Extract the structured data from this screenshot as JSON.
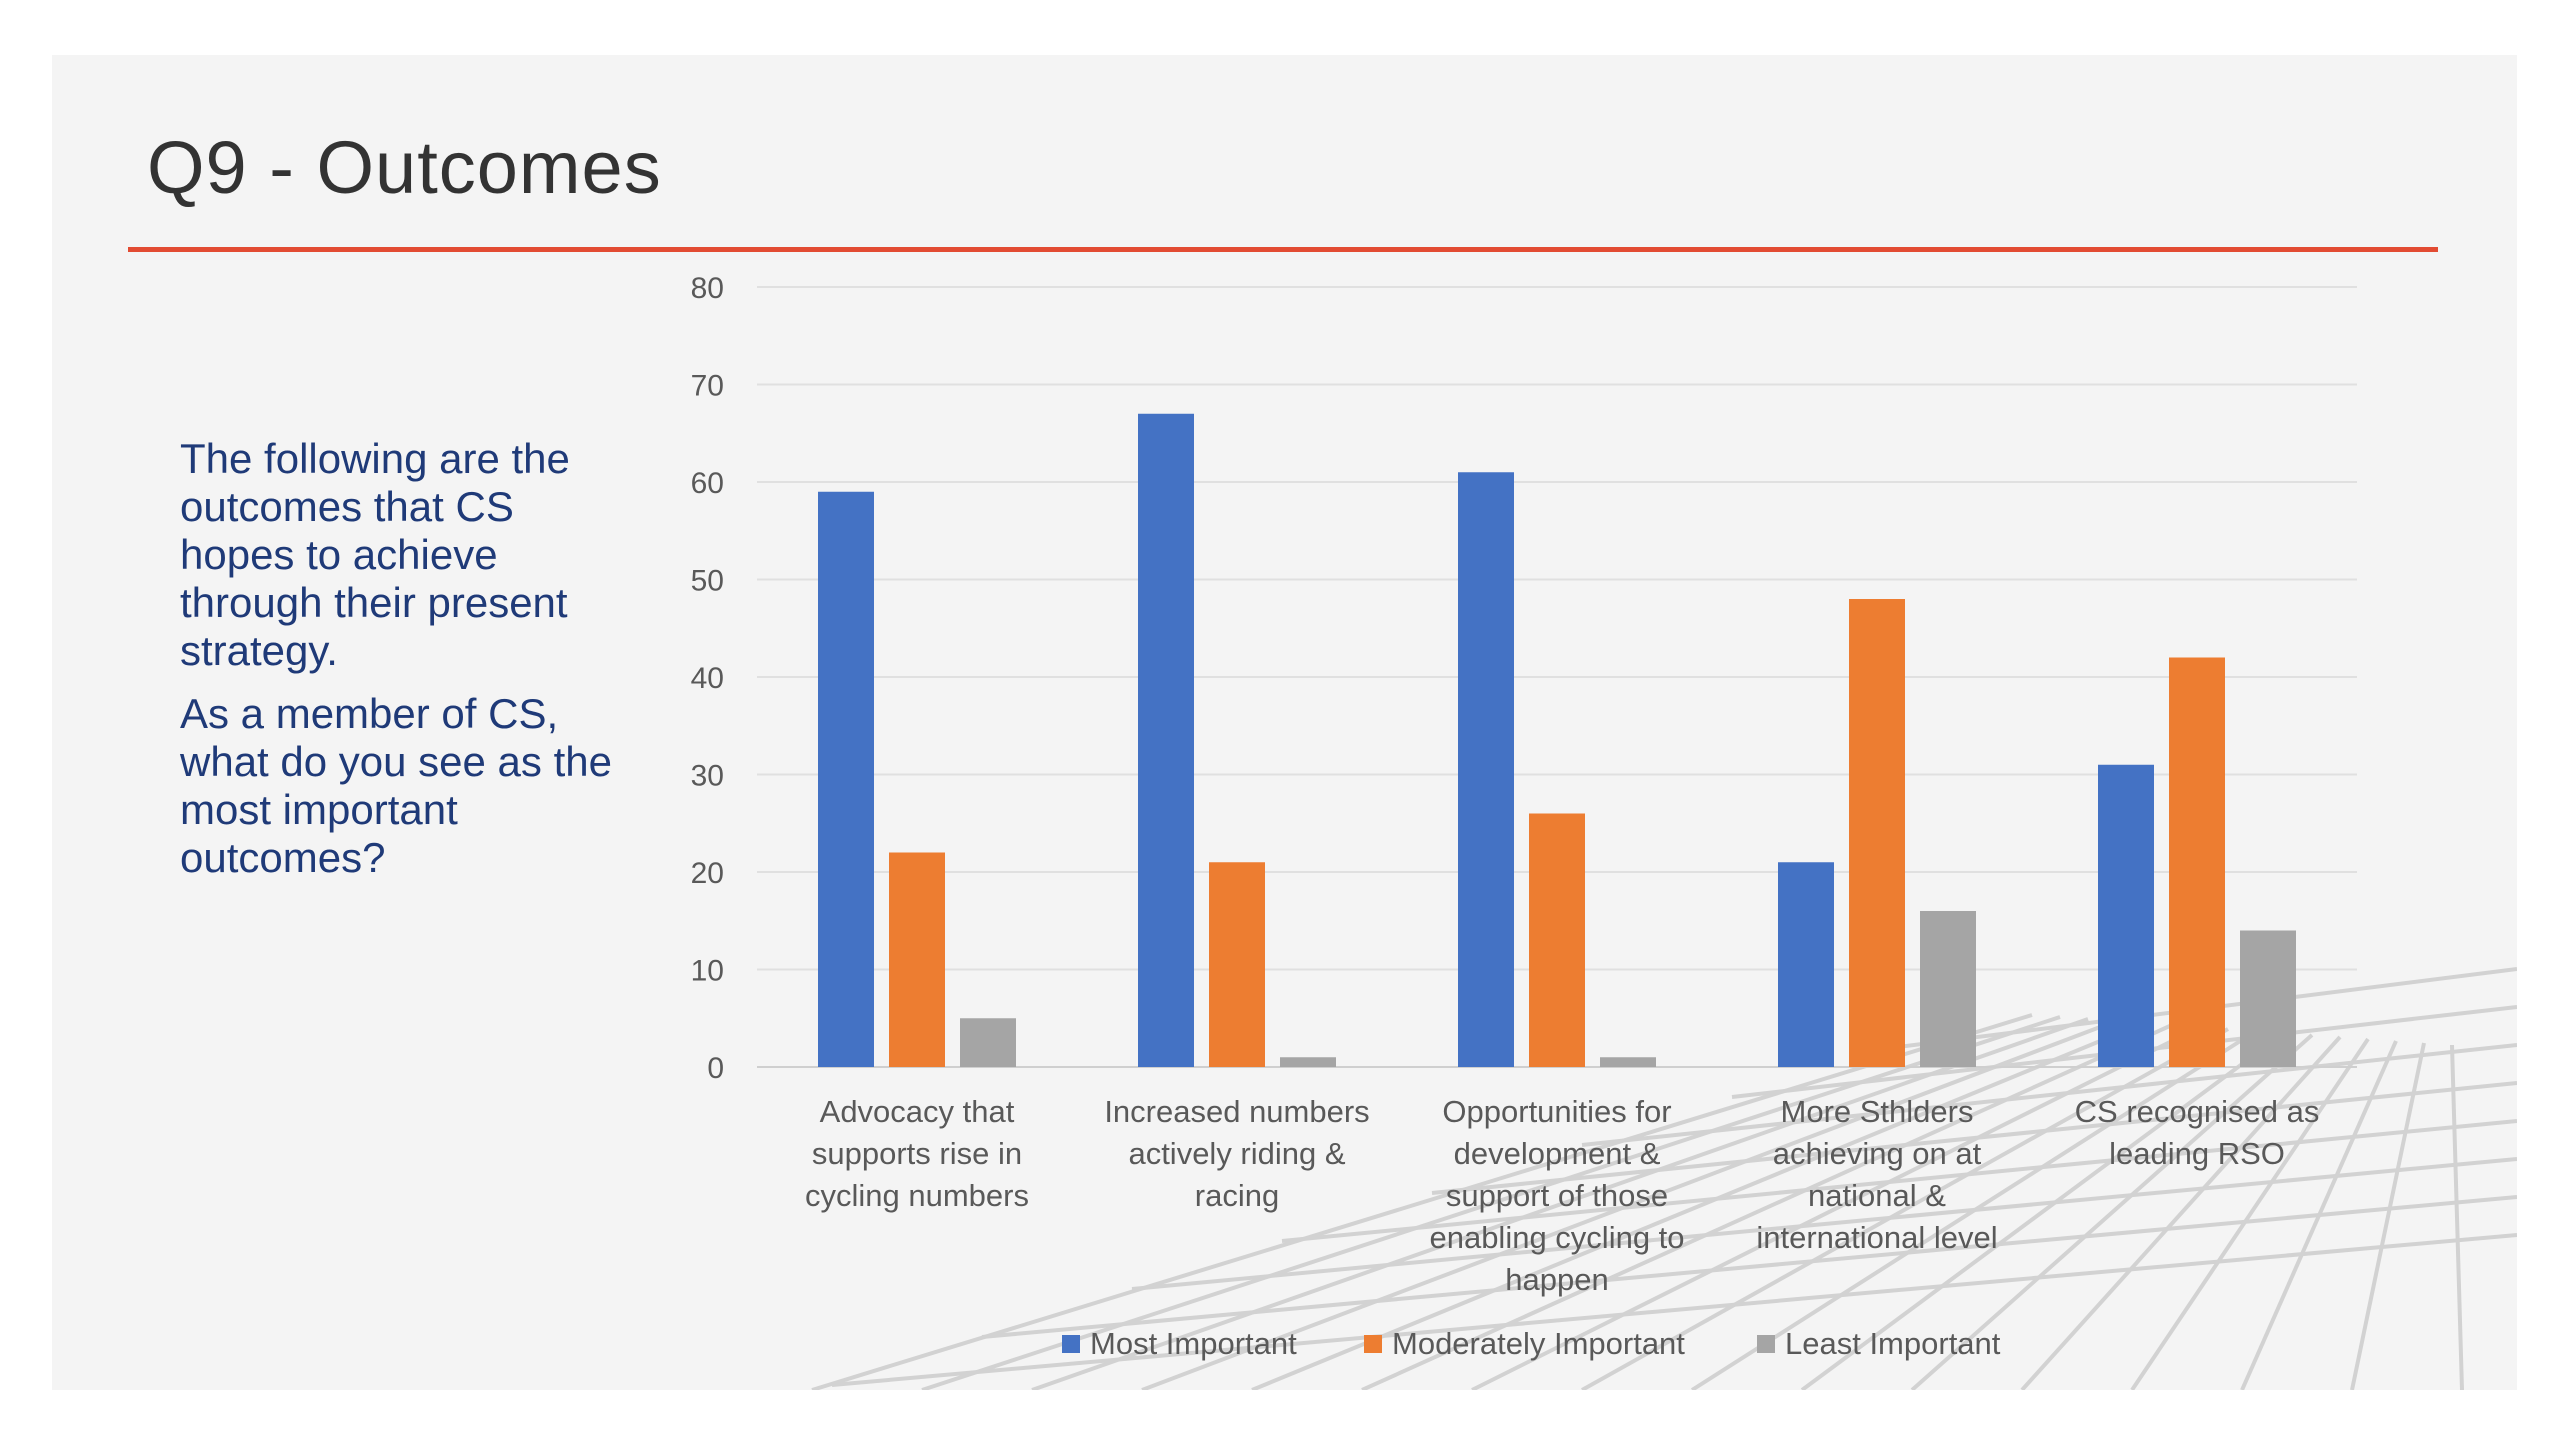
{
  "slide": {
    "title": "Q9 - Outcomes",
    "side_text": [
      "The following are the outcomes that CS hopes to achieve through their present strategy.",
      "As a member of CS, what do you see as the most important outcomes?"
    ]
  },
  "colors": {
    "accent_rule": "#e24b32",
    "side_text": "#1f3a78"
  },
  "chart_data": {
    "type": "bar",
    "categories": [
      [
        "Advocacy that",
        "supports rise in",
        "cycling numbers"
      ],
      [
        "Increased numbers",
        "actively riding &",
        "racing"
      ],
      [
        "Opportunities for",
        "development &",
        "support of those",
        "enabling cycling to",
        "happen"
      ],
      [
        "More Sthlders",
        "achieving on at",
        "national &",
        "international level"
      ],
      [
        "CS recognised as",
        "leading RSO"
      ]
    ],
    "series": [
      {
        "name": "Most Important",
        "color": "#4472c4",
        "values": [
          59,
          67,
          61,
          21,
          31
        ]
      },
      {
        "name": "Moderately Important",
        "color": "#ed7d31",
        "values": [
          22,
          21,
          26,
          48,
          42
        ]
      },
      {
        "name": "Least Important",
        "color": "#a5a5a5",
        "values": [
          5,
          1,
          1,
          16,
          14
        ]
      }
    ],
    "ylim": [
      0,
      80
    ],
    "yticks": [
      0,
      10,
      20,
      30,
      40,
      50,
      60,
      70,
      80
    ],
    "grid": true,
    "legend": "bottom"
  }
}
